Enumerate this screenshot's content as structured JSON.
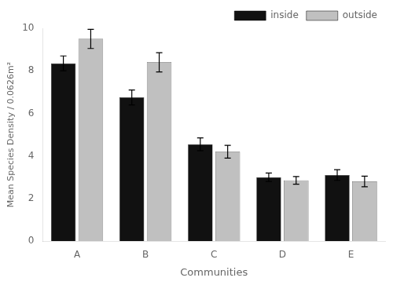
{
  "chart_data": {
    "type": "bar",
    "categories": [
      "A",
      "B",
      "C",
      "D",
      "E"
    ],
    "series": [
      {
        "name": "inside",
        "color": "#111111",
        "values": [
          8.35,
          6.75,
          4.55,
          3.0,
          3.1
        ],
        "errors": [
          0.35,
          0.35,
          0.3,
          0.2,
          0.25
        ]
      },
      {
        "name": "outside",
        "color": "#c0c0c0",
        "values": [
          9.5,
          8.4,
          4.2,
          2.85,
          2.8
        ],
        "errors": [
          0.45,
          0.45,
          0.3,
          0.18,
          0.25
        ]
      }
    ],
    "xlabel": "Communities",
    "ylabel": "Mean Species Density / 0.0626m²",
    "ylim": [
      0,
      10
    ],
    "yticks": [
      0,
      2,
      4,
      6,
      8,
      10
    ],
    "grid": false,
    "legend": "upper right"
  }
}
